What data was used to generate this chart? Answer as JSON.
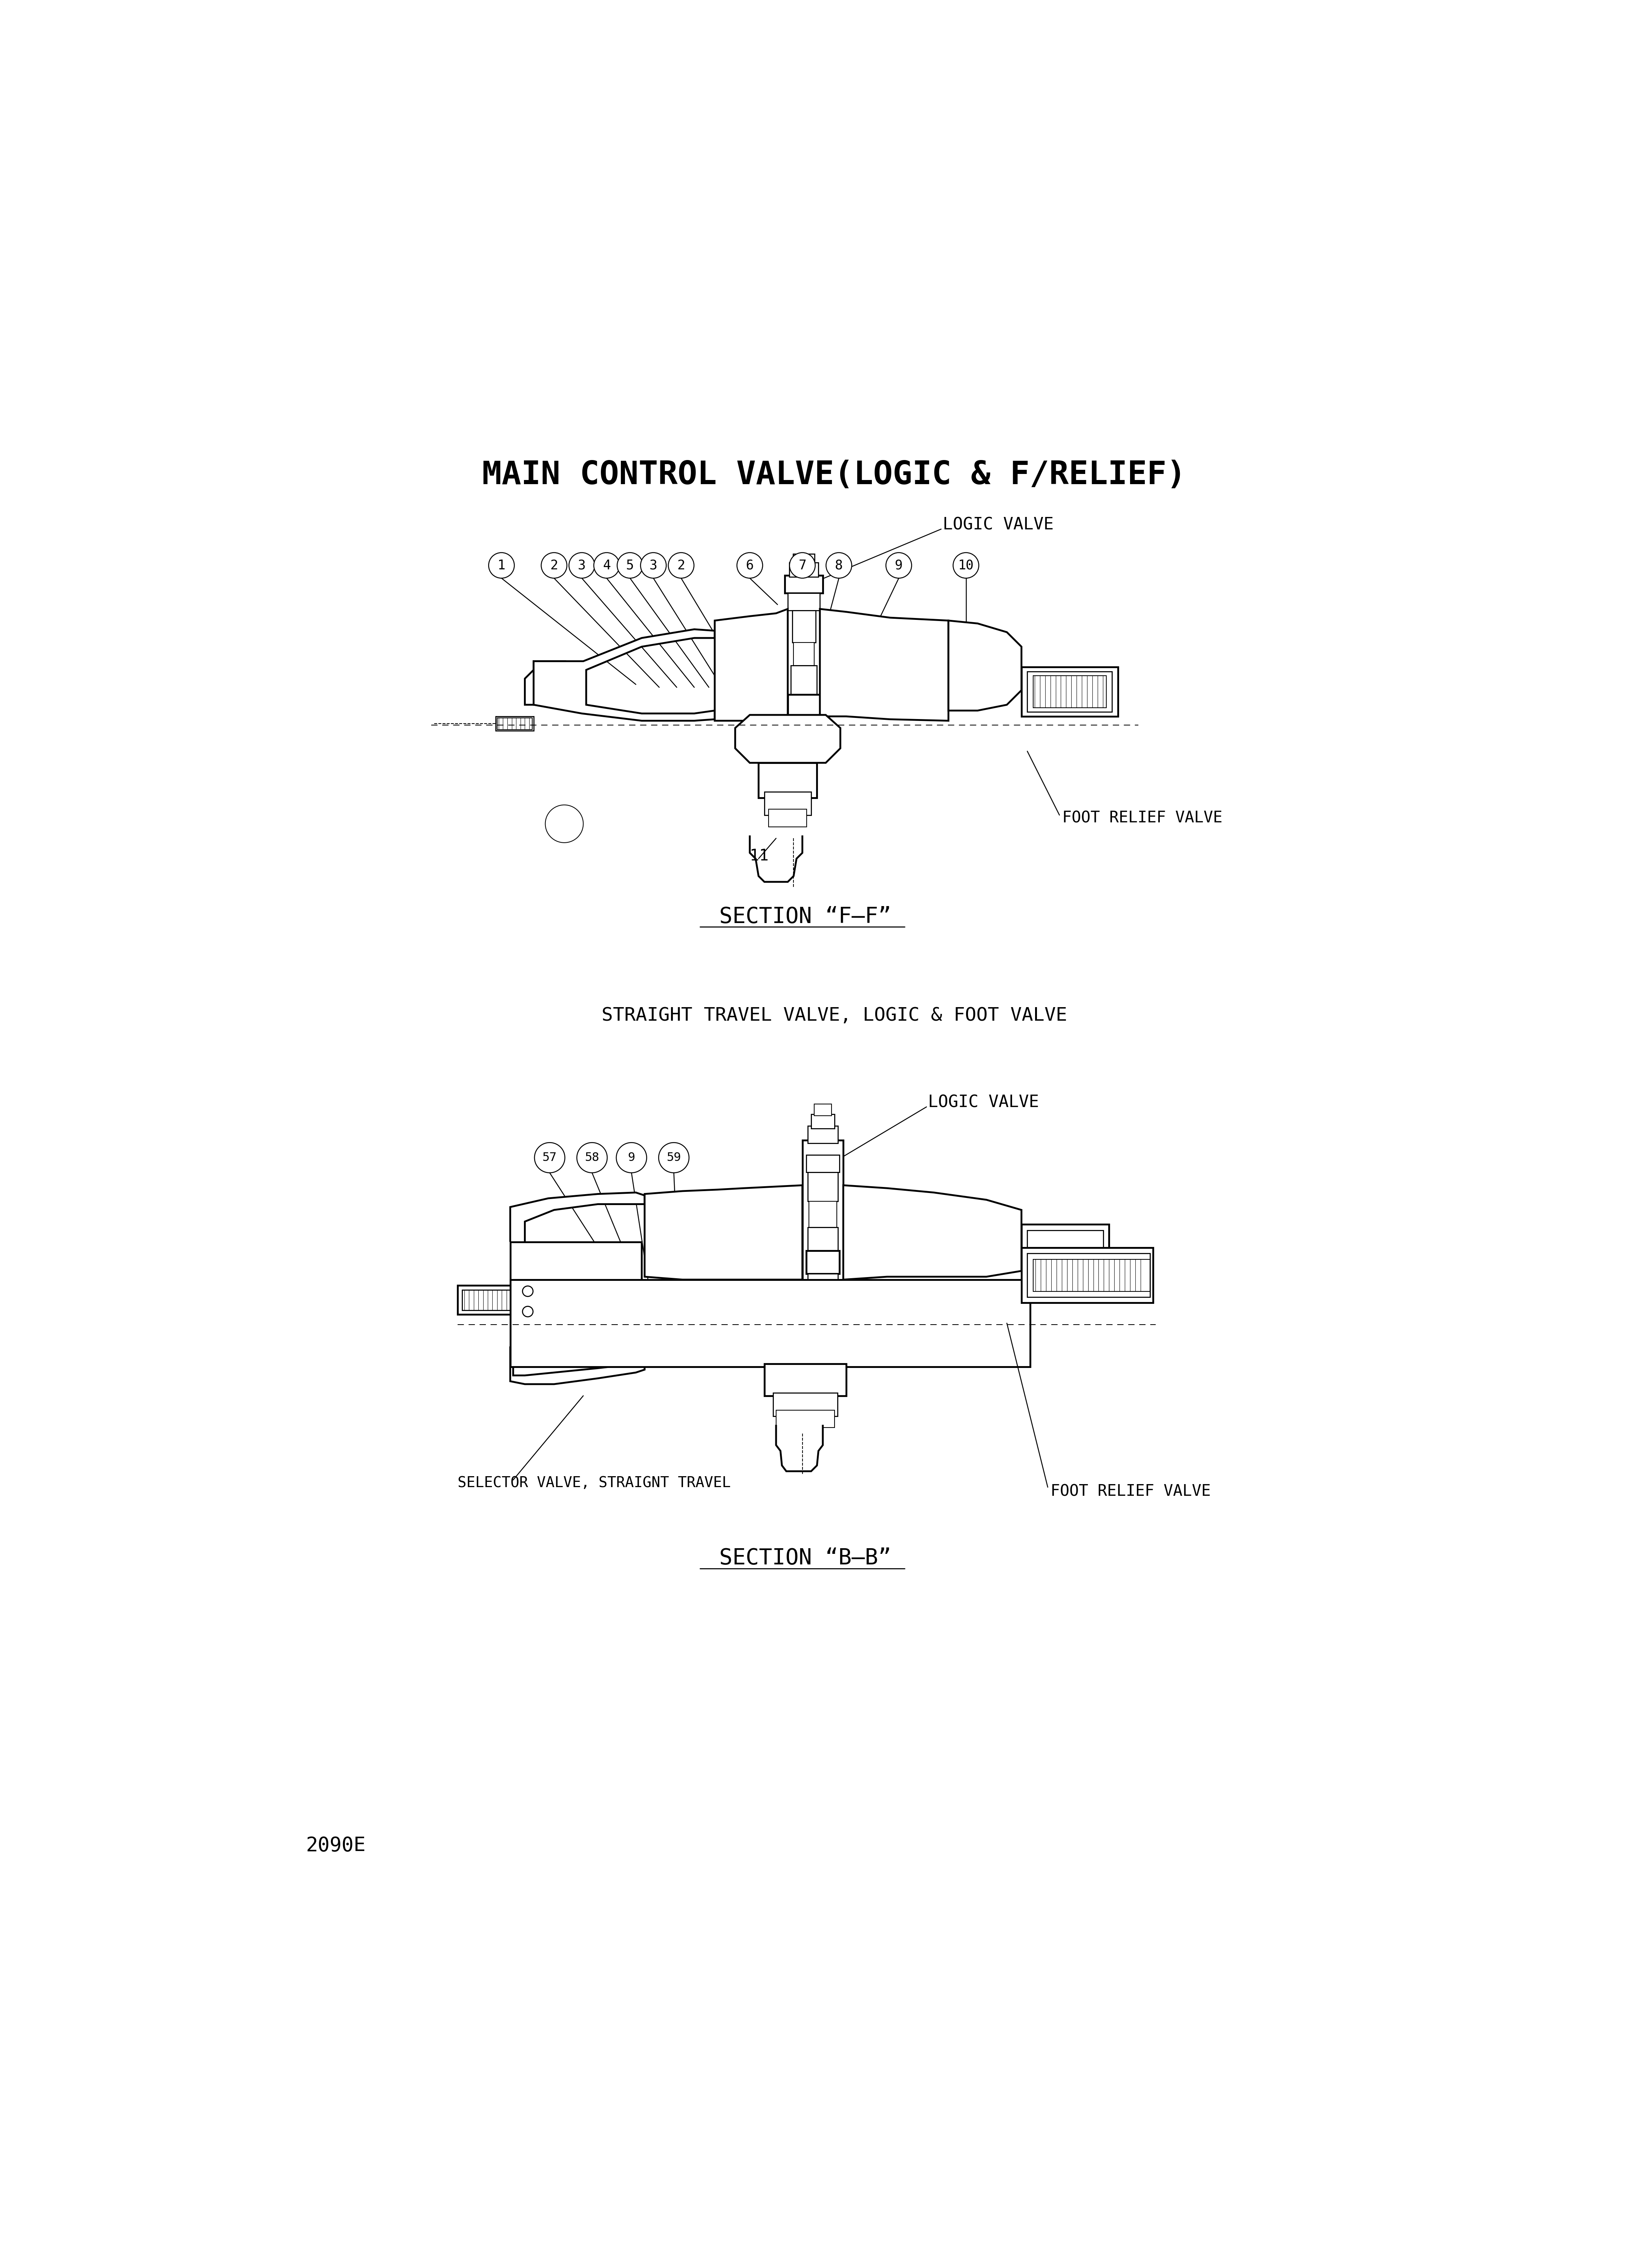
{
  "title": "MAIN CONTROL VALVE(LOGIC & F/RELIEF)",
  "bg": "#ffffff",
  "fg": "#000000",
  "section_f": "SECTION “F—F”",
  "section_b": "SECTION “B—B”",
  "subtitle": "STRAIGHT TRAVEL VALVE, LOGIC & FOOT VALVE",
  "part_number": "2090E",
  "logic_valve": "LOGIC VALVE",
  "foot_relief": "FOOT RELIEF VALVE",
  "selector_valve": "SELECTOR VALVE, STRAIGNT TRAVEL",
  "callouts_top": [
    "1",
    "2",
    "3",
    "4",
    "5",
    "3",
    "2",
    "6",
    "7",
    "8",
    "9",
    "10"
  ],
  "callouts_bot": [
    "57",
    "58",
    "9",
    "59"
  ],
  "label_11": "11",
  "lw_body": 3.5,
  "lw_detail": 2.0,
  "lw_thin": 1.5,
  "lw_leader": 1.8
}
